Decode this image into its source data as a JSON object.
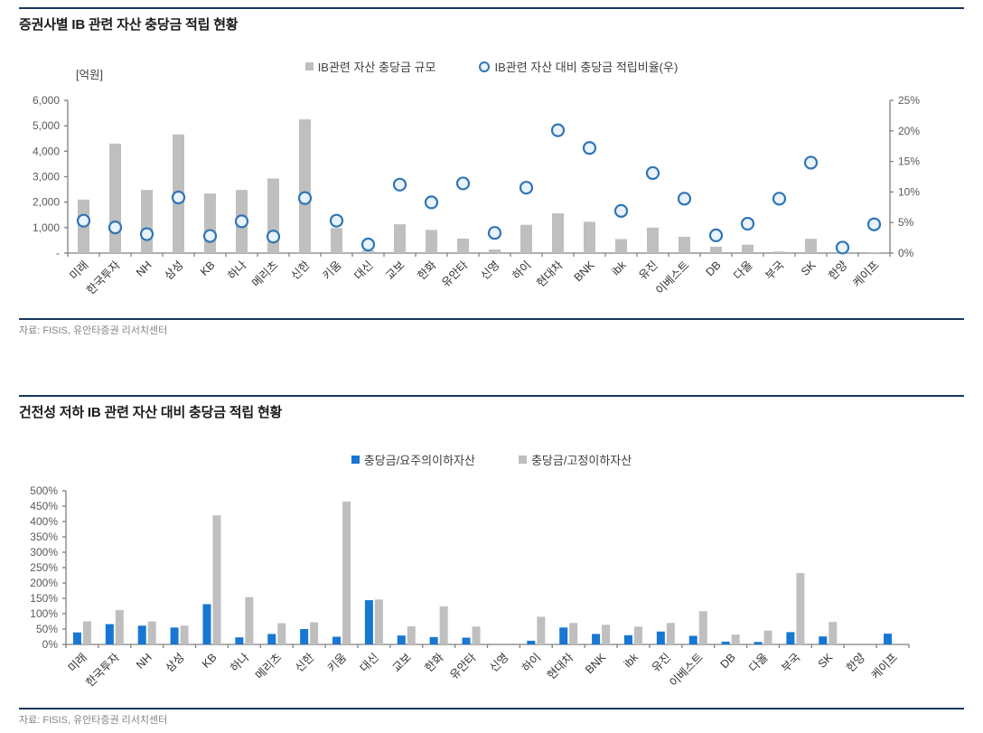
{
  "section1": {
    "title": "증권사별 IB 관련 자산 충당금 적립 현황",
    "source": "자료: FISIS, 유안타증권 리서치센터"
  },
  "section2": {
    "title": "건전성 저하 IB 관련 자산 대비 충당금 적립 현황",
    "source": "자료: FISIS, 유안타증권 리서치센터"
  },
  "colors": {
    "bar_gray": "#BFBFBF",
    "bar_blue": "#1777D2",
    "circle_stroke": "#2E75B6",
    "circle_fill": "#EAF3FB",
    "axis": "#808080",
    "tick_label": "#595959",
    "category_label": "#333333",
    "divider": "#17375E"
  },
  "chart_data": [
    {
      "id": "chart1",
      "type": "bar",
      "title": "증권사별 IB 관련 자산 충당금 적립 현황",
      "unit_label": "[억원]",
      "legend_position": "top",
      "grid": false,
      "categories": [
        "미래",
        "한국투자",
        "NH",
        "삼성",
        "KB",
        "하나",
        "메리츠",
        "신한",
        "키움",
        "대신",
        "교보",
        "한화",
        "유안타",
        "신영",
        "하이",
        "현대차",
        "BNK",
        "ibk",
        "유진",
        "이베스트",
        "DB",
        "다올",
        "부국",
        "SK",
        "한양",
        "케이프"
      ],
      "series": [
        {
          "name": "IB관련 자산 충당금 규모",
          "render": "bar",
          "axis": "left",
          "values": [
            2100,
            4300,
            2480,
            4660,
            2340,
            2480,
            2930,
            5250,
            980,
            110,
            1130,
            910,
            570,
            140,
            1110,
            1560,
            1230,
            550,
            1000,
            640,
            250,
            330,
            60,
            560,
            10,
            30
          ]
        },
        {
          "name": "IB관련 자산 대비 충당금 적립비율(우)",
          "render": "scatter",
          "axis": "right",
          "marker": "circle-outline",
          "values": [
            5.3,
            4.2,
            3.1,
            9.1,
            2.8,
            5.2,
            2.7,
            9.0,
            5.3,
            1.4,
            11.2,
            8.3,
            11.4,
            3.3,
            10.7,
            20.1,
            17.2,
            6.9,
            13.1,
            8.9,
            2.9,
            4.8,
            8.9,
            14.8,
            0.9,
            4.7
          ]
        }
      ],
      "left_axis": {
        "min": 0,
        "max": 6000,
        "step": 1000,
        "tick_labels": [
          "-",
          "1,000",
          "2,000",
          "3,000",
          "4,000",
          "5,000",
          "6,000"
        ]
      },
      "right_axis": {
        "min": 0,
        "max": 25,
        "step": 5,
        "tick_suffix": "%"
      }
    },
    {
      "id": "chart2",
      "type": "bar",
      "title": "건전성 저하 IB 관련 자산 대비 충당금 적립 현황",
      "legend_position": "top",
      "grid": false,
      "categories": [
        "미래",
        "한국투자",
        "NH",
        "삼성",
        "KB",
        "하나",
        "메리츠",
        "신한",
        "키움",
        "대신",
        "교보",
        "한화",
        "유안타",
        "신영",
        "하이",
        "현대차",
        "BNK",
        "ibk",
        "유진",
        "이베스트",
        "DB",
        "다올",
        "부국",
        "SK",
        "한양",
        "케이프"
      ],
      "series": [
        {
          "name": "충당금/요주의이하자산",
          "color_key": "blue",
          "values": [
            39,
            66,
            61,
            55,
            131,
            23,
            34,
            50,
            25,
            144,
            29,
            24,
            22,
            0,
            12,
            55,
            34,
            30,
            42,
            28,
            9,
            8,
            40,
            26,
            0,
            35
          ]
        },
        {
          "name": "충당금/고정이하자산",
          "color_key": "gray",
          "values": [
            75,
            112,
            75,
            61,
            420,
            154,
            69,
            72,
            465,
            146,
            59,
            124,
            58,
            0,
            90,
            70,
            64,
            58,
            70,
            108,
            32,
            45,
            232,
            73,
            0,
            0
          ]
        }
      ],
      "y_axis": {
        "min": 0,
        "max": 500,
        "step": 50,
        "tick_suffix": "%"
      }
    }
  ]
}
